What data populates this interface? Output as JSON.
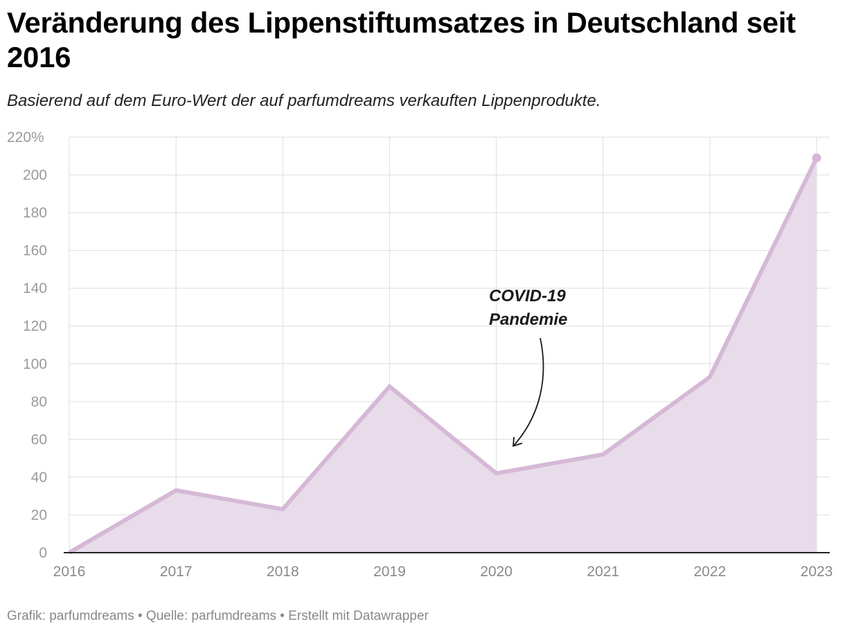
{
  "title": "Veränderung des Lippenstiftumsatzes in Deutschland seit 2016",
  "subtitle": "Basierend auf dem Euro-Wert der auf parfumdreams verkauften Lippenprodukte.",
  "footer": "Grafik: parfumdreams • Quelle: parfumdreams • Erstellt mit Datawrapper",
  "chart_data": {
    "type": "area",
    "x": [
      "2016",
      "2017",
      "2018",
      "2019",
      "2020",
      "2021",
      "2022",
      "2023"
    ],
    "series": [
      {
        "values": [
          0,
          33,
          23,
          88,
          42,
          52,
          93,
          209
        ]
      }
    ],
    "ylim": [
      0,
      220
    ],
    "yticks": [
      0,
      20,
      40,
      60,
      80,
      100,
      120,
      140,
      160,
      180,
      200,
      220
    ],
    "ytick_labels": [
      "0",
      "20",
      "40",
      "60",
      "80",
      "100",
      "120",
      "140",
      "160",
      "180",
      "200",
      "220%"
    ],
    "grid": true,
    "line_color": "#d5b8d6",
    "fill_color": "#e8dbea",
    "annotations": [
      {
        "lines": [
          "COVID-19",
          "Pandemie"
        ],
        "target_x": "2020"
      }
    ]
  }
}
